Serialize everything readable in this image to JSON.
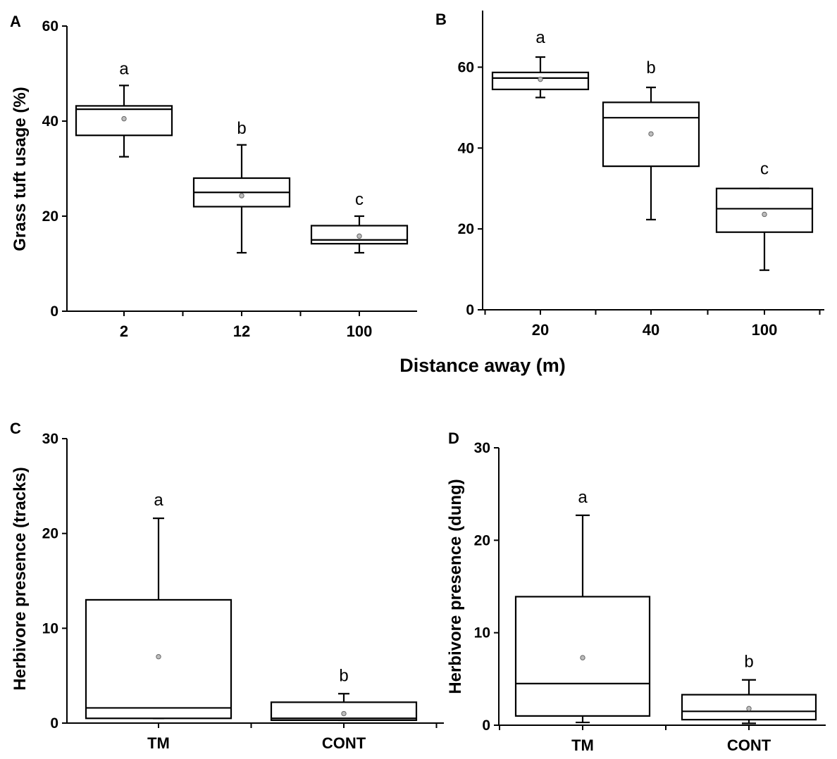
{
  "shared_xlabel": "Distance away (m)",
  "chart_data": [
    {
      "type": "box",
      "panel_label": "A",
      "ylabel": "Grass tuft usage (%)",
      "ylim": [
        0,
        60
      ],
      "yticks": [
        0,
        20,
        40,
        60
      ],
      "categories": [
        "2",
        "12",
        "100"
      ],
      "boxes": [
        {
          "whisker_low": 32.5,
          "q1": 37,
          "median": 42.5,
          "q3": 43.2,
          "whisker_high": 47.5,
          "mean": 40.5,
          "letter": "a"
        },
        {
          "whisker_low": 12.3,
          "q1": 22,
          "median": 25,
          "q3": 28,
          "whisker_high": 35,
          "mean": 24.3,
          "letter": "b"
        },
        {
          "whisker_low": 12.3,
          "q1": 14.2,
          "median": 15,
          "q3": 18,
          "whisker_high": 20,
          "mean": 15.8,
          "letter": "c"
        }
      ]
    },
    {
      "type": "box",
      "panel_label": "B",
      "ylabel": "",
      "ylim": [
        0,
        74
      ],
      "yticks": [
        0,
        20,
        40,
        60
      ],
      "categories": [
        "20",
        "40",
        "100"
      ],
      "boxes": [
        {
          "whisker_low": 52.5,
          "q1": 54.5,
          "median": 57.3,
          "q3": 58.7,
          "whisker_high": 62.5,
          "mean": 57,
          "letter": "a"
        },
        {
          "whisker_low": 22.3,
          "q1": 35.5,
          "median": 47.5,
          "q3": 51.3,
          "whisker_high": 55,
          "mean": 43.5,
          "letter": "b"
        },
        {
          "whisker_low": 9.8,
          "q1": 19.2,
          "median": 25,
          "q3": 30,
          "whisker_high": 30,
          "mean": 23.6,
          "letter": "c"
        }
      ]
    },
    {
      "type": "box",
      "panel_label": "C",
      "ylabel": "Herbivore presence (tracks)",
      "ylim": [
        0,
        30
      ],
      "yticks": [
        0,
        10,
        20,
        30
      ],
      "categories": [
        "TM",
        "CONT"
      ],
      "boxes": [
        {
          "whisker_low": 0.5,
          "q1": 0.5,
          "median": 1.6,
          "q3": 13,
          "whisker_high": 21.6,
          "mean": 7,
          "letter": "a"
        },
        {
          "whisker_low": 0.3,
          "q1": 0.3,
          "median": 0.5,
          "q3": 2.2,
          "whisker_high": 3.1,
          "mean": 1,
          "letter": "b"
        }
      ]
    },
    {
      "type": "box",
      "panel_label": "D",
      "ylabel": "Herbivore presence (dung)",
      "ylim": [
        0,
        30
      ],
      "yticks": [
        0,
        10,
        20,
        30
      ],
      "categories": [
        "TM",
        "CONT"
      ],
      "boxes": [
        {
          "whisker_low": 0.3,
          "q1": 1,
          "median": 4.5,
          "q3": 13.9,
          "whisker_high": 22.7,
          "mean": 7.3,
          "letter": "a"
        },
        {
          "whisker_low": 0.2,
          "q1": 0.6,
          "median": 1.5,
          "q3": 3.3,
          "whisker_high": 4.9,
          "mean": 1.8,
          "letter": "b"
        }
      ]
    }
  ]
}
